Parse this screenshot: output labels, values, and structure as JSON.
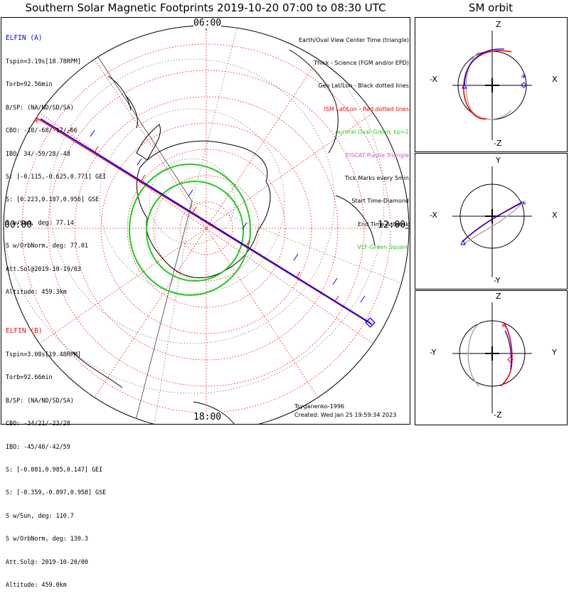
{
  "title": "Southern Solar Magnetic Footprints 2019-10-20 07:00 to 08:30 UTC",
  "sm_orbit_title": "SM orbit",
  "local_times": {
    "top": "06:00",
    "left": "00:00",
    "right": "12:00",
    "bottom": "18:00"
  },
  "legend": [
    {
      "text": "Earth/Oval View Center Time (triangle)",
      "color": "#000000"
    },
    {
      "text": "Thick - Science (FGM and/or EPD)",
      "color": "#000000"
    },
    {
      "text": "Geo Lat/Lon - Black dotted lines",
      "color": "#000000"
    },
    {
      "text": "ISM Lat/Lon - Red dotted lines",
      "color": "#ff0000"
    },
    {
      "text": "Auroral Oval-Green, kp=2",
      "color": "#22cc22"
    },
    {
      "text": "EISCAT-Purple Triangle",
      "color": "#cc55cc"
    },
    {
      "text": "Tick Marks every 5min",
      "color": "#000000"
    },
    {
      "text": "Start Time-Diamond",
      "color": "#000000"
    },
    {
      "text": "End Time-Asterisk",
      "color": "#000000"
    },
    {
      "text": "VLF-Green Square",
      "color": "#22cc22"
    }
  ],
  "elfin_a": {
    "name": "ELFIN (A)",
    "color": "#0000ff",
    "lines": [
      "Tspin=3.19s[18.78RPM]",
      "Torb=92.56min",
      "B/SP: (NA/ND/SD/SA)",
      "CBO: -10/-68/-17/-66",
      "IBO: 34/-59/28/-48",
      "S: [-0.115,-0.625,0.771] GEI",
      "S: [0.223,0.187,0.956] GSE",
      "S w/Sun, deg: 77.14",
      "S w/OrbNorm, deg: 77.01",
      "Att.Sol@2019-10-19/03",
      "Altitude: 459.3km"
    ]
  },
  "elfin_b": {
    "name": "ELFIN (B)",
    "color": "#ff0000",
    "lines": [
      "Tspin=3.08s[19.48RPM]",
      "Torb=92.66min",
      "B/SP: (NA/ND/SD/SA)",
      "CBO: -34/21/-23/28",
      "IBO: -45/40/-42/59",
      "S: [-0.081,0.985,0.147] GEI",
      "S: [-0.359,-0.897,0.958] GSE",
      "S w/Sun, deg: 110.7",
      "S w/OrbNorm, deg: 130.3",
      "Att.Sol@: 2019-10-20/00",
      "Altitude: 459.0km"
    ]
  },
  "credits": {
    "author": "Tsyganenko-1996",
    "created": "Created: Wed Jan 25 19:59:34 2023"
  },
  "sm_panels": [
    {
      "top": "Z",
      "bottom": "-Z",
      "left": "-X",
      "right": "X"
    },
    {
      "top": "Y",
      "bottom": "-Y",
      "left": "-X",
      "right": "X"
    },
    {
      "top": "Z",
      "bottom": "-Z",
      "left": "-Y",
      "right": "Y"
    }
  ]
}
